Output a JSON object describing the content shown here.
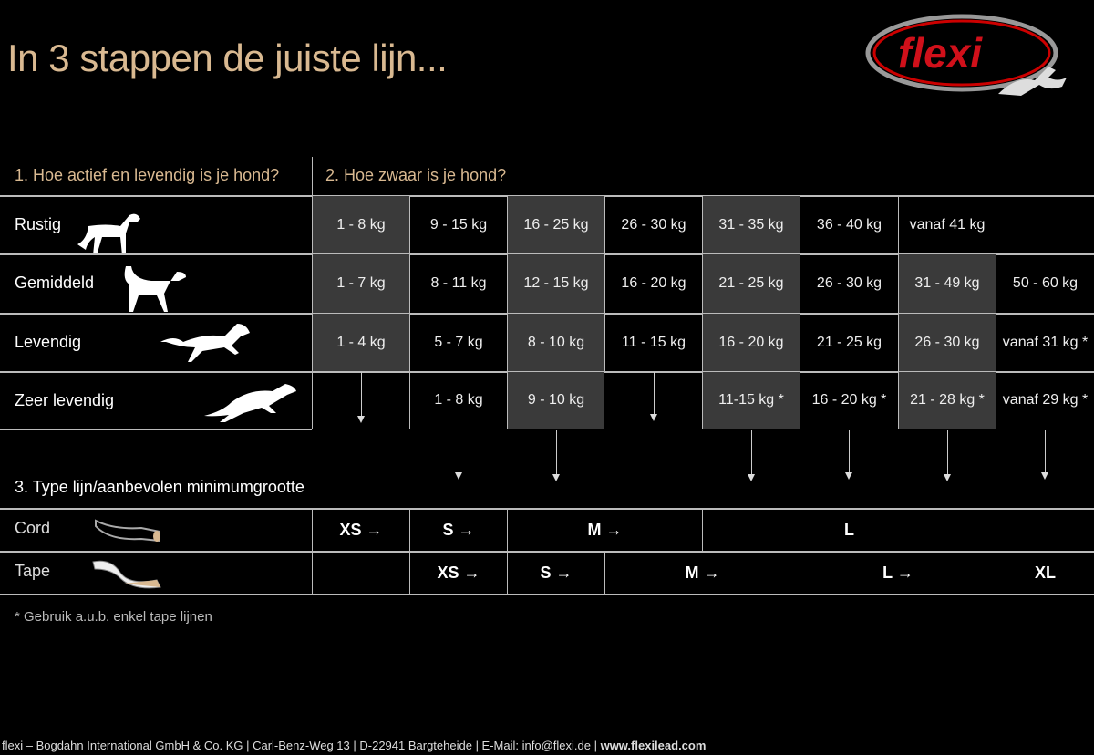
{
  "title": "In 3 stappen de juiste lijn...",
  "logo": {
    "text": "flexi",
    "color": "#d0101a"
  },
  "step1": "1. Hoe actief en levendig is je hond?",
  "step2": "2. Hoe zwaar is je hond?",
  "step3": "3. Type lijn/aanbevolen minimumgrootte",
  "rows": [
    {
      "label": "Rustig",
      "icon": "standing-dog-icon",
      "cells": [
        "1 - 8 kg",
        "9 - 15 kg",
        "16 - 25 kg",
        "26 - 30 kg",
        "31 - 35 kg",
        "36 - 40 kg",
        "vanaf 41 kg",
        ""
      ]
    },
    {
      "label": "Gemiddeld",
      "icon": "walking-dog-icon",
      "cells": [
        "1 - 7 kg",
        "8 - 11 kg",
        "12 - 15 kg",
        "16 - 20 kg",
        "21 - 25 kg",
        "26 - 30 kg",
        "31 - 49 kg",
        "50 - 60 kg"
      ]
    },
    {
      "label": "Levendig",
      "icon": "running-dog-icon",
      "cells": [
        "1 - 4 kg",
        "5 - 7 kg",
        "8 - 10 kg",
        "11 - 15 kg",
        "16 - 20 kg",
        "21 - 25 kg",
        "26 - 30 kg",
        "vanaf 31 kg *"
      ]
    },
    {
      "label": "Zeer levendig",
      "icon": "sprinting-dog-icon",
      "cells": [
        "",
        "1 - 8 kg",
        "9 - 10 kg",
        "",
        "11-15 kg *",
        "16 - 20 kg *",
        "21 - 28 kg *",
        "vanaf 29 kg *"
      ]
    }
  ],
  "cord": {
    "label": "Cord",
    "sizes": [
      "XS →",
      "S →",
      "M →",
      "L",
      ""
    ]
  },
  "tape": {
    "label": "Tape",
    "sizes": [
      "",
      "XS →",
      "S →",
      "M →",
      "L →",
      "XL"
    ]
  },
  "note": "* Gebruik a.u.b. enkel tape lijnen",
  "footer": {
    "text": "flexi – Bogdahn International GmbH & Co. KG | Carl-Benz-Weg 13 | D-22941 Bargteheide | E-Mail: info@flexi.de | ",
    "url": "www.flexilead.com"
  }
}
